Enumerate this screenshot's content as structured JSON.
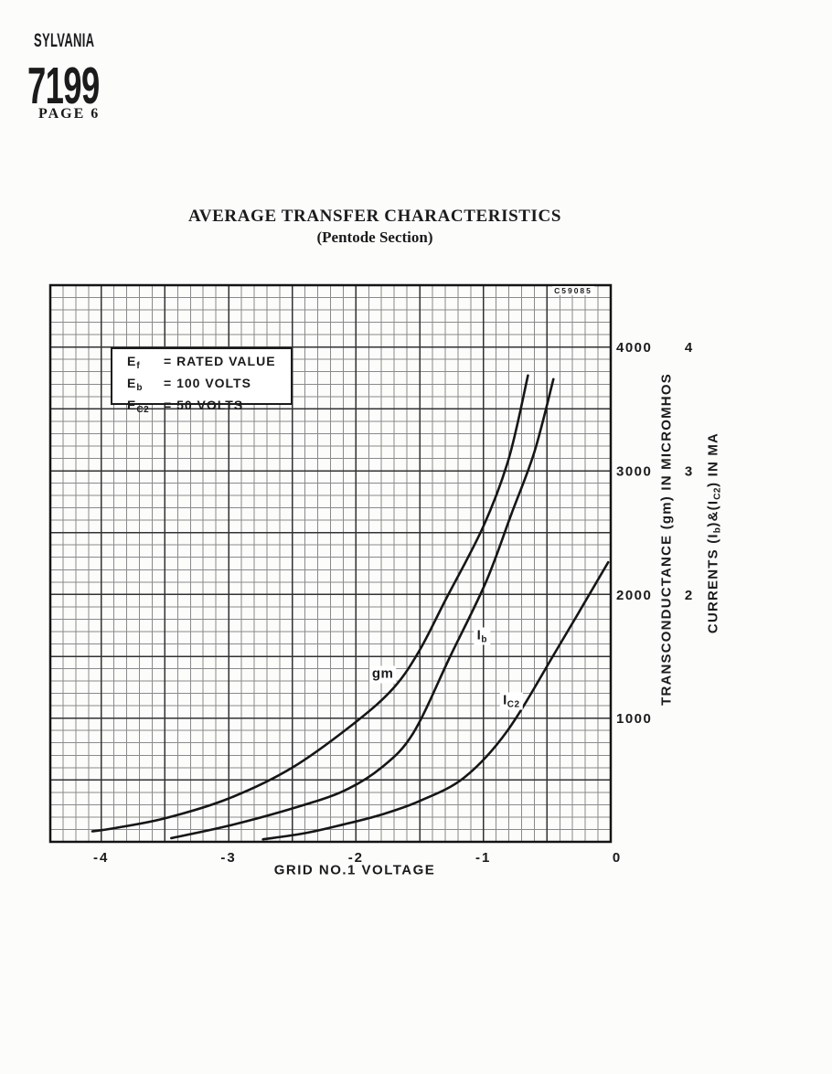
{
  "page": {
    "brand": "SYLVANIA",
    "tube": "7199",
    "page_label": "PAGE 6"
  },
  "title": {
    "line1": "AVERAGE TRANSFER CHARACTERISTICS",
    "line2": "(Pentode Section)"
  },
  "chart_data": {
    "type": "line",
    "title": "AVERAGE TRANSFER CHARACTERISTICS (Pentode Section)",
    "xlabel": "GRID NO.1 VOLTAGE",
    "xlim": [
      -4.4,
      0
    ],
    "x_ticks": [
      {
        "v": -4,
        "label": "-4",
        "dx": 0
      },
      {
        "v": -3,
        "label": "-3",
        "dx": 0
      },
      {
        "v": -2,
        "label": "-2",
        "dx": 0
      },
      {
        "v": -1,
        "label": "-1",
        "dx": 0
      },
      {
        "v": 0,
        "label": "0",
        "dx": 7
      }
    ],
    "grid": {
      "x_minor": 0.1,
      "x_major": 0.5,
      "y_minor": 100,
      "y_major": 500,
      "on": true
    },
    "axis_gm": {
      "label": "TRANSCONDUCTANCE (gm) IN MICROMHOS",
      "lim": [
        0,
        4500
      ],
      "ticks": [
        {
          "v": 4000,
          "label": "4000"
        },
        {
          "v": 3000,
          "label": "3000"
        },
        {
          "v": 2000,
          "label": "2000"
        },
        {
          "v": 1000,
          "label": "1000"
        }
      ]
    },
    "axis_current": {
      "label_parts": [
        "CURRENTS (I",
        "b",
        ")&(I",
        "C2",
        ") IN MA"
      ],
      "lim": [
        0,
        4.5
      ],
      "ticks": [
        {
          "v": 4,
          "label": "4"
        },
        {
          "v": 3,
          "label": "3"
        },
        {
          "v": 2,
          "label": "2"
        }
      ]
    },
    "conditions": [
      {
        "sym": "E",
        "sub": "f",
        "value": "= RATED VALUE"
      },
      {
        "sym": "E",
        "sub": "b",
        "value": "= 100 VOLTS"
      },
      {
        "sym": "E",
        "sub": "C2",
        "value": "= 50 VOLTS"
      }
    ],
    "figure_code": "C59085",
    "colors": {
      "ink": "#1b1b1b",
      "curve": "#161616",
      "grid_minor": "#8a8a8a",
      "grid_major": "#323232",
      "border": "#141414",
      "paper": "#fcfcfb"
    },
    "series": [
      {
        "name": "gm",
        "axis": "gm",
        "label_main": "gm",
        "label_sub": "",
        "label_at": [
          -1.79,
          1352
        ],
        "points": [
          [
            -4.07,
            85
          ],
          [
            -3.9,
            110
          ],
          [
            -3.5,
            190
          ],
          [
            -3.0,
            350
          ],
          [
            -2.5,
            600
          ],
          [
            -2.0,
            970
          ],
          [
            -1.7,
            1250
          ],
          [
            -1.5,
            1550
          ],
          [
            -1.3,
            1950
          ],
          [
            -1.0,
            2550
          ],
          [
            -0.8,
            3100
          ],
          [
            -0.65,
            3770
          ]
        ]
      },
      {
        "name": "Ib",
        "axis": "current",
        "label_main": "I",
        "label_sub": "b",
        "label_at": [
          -1.01,
          1.66
        ],
        "points": [
          [
            -3.45,
            0.03
          ],
          [
            -3.0,
            0.13
          ],
          [
            -2.5,
            0.27
          ],
          [
            -2.1,
            0.41
          ],
          [
            -1.8,
            0.6
          ],
          [
            -1.55,
            0.88
          ],
          [
            -1.26,
            1.5
          ],
          [
            -0.98,
            2.1
          ],
          [
            -0.78,
            2.65
          ],
          [
            -0.6,
            3.15
          ],
          [
            -0.45,
            3.74
          ]
        ]
      },
      {
        "name": "Ic2",
        "axis": "current",
        "label_main": "I",
        "label_sub": "C2",
        "label_at": [
          -0.78,
          1.14
        ],
        "points": [
          [
            -2.73,
            0.02
          ],
          [
            -2.4,
            0.07
          ],
          [
            -2.1,
            0.14
          ],
          [
            -1.8,
            0.22
          ],
          [
            -1.5,
            0.33
          ],
          [
            -1.15,
            0.52
          ],
          [
            -0.81,
            0.9
          ],
          [
            -0.42,
            1.56
          ],
          [
            -0.02,
            2.26
          ]
        ]
      }
    ]
  }
}
